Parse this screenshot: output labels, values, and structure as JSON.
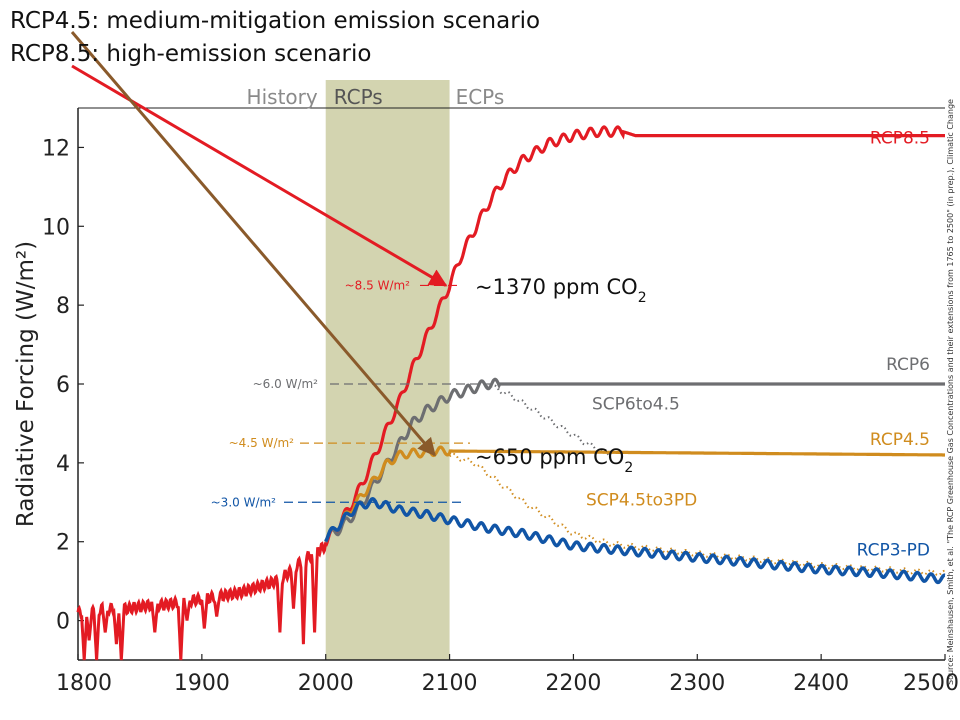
{
  "titles": {
    "line1": "RCP4.5: medium-mitigation emission scenario",
    "line2": "RCP8.5: high-emission scenario"
  },
  "chart_data": {
    "type": "line",
    "ylabel": "Radiative Forcing (W/m²)",
    "xlim": [
      1800,
      2500
    ],
    "ylim": [
      -1,
      13
    ],
    "x_ticks": [
      1800,
      1900,
      2000,
      2100,
      2200,
      2300,
      2400,
      2500
    ],
    "y_ticks": [
      0,
      2,
      4,
      6,
      8,
      10,
      12
    ],
    "periods": [
      {
        "name": "History",
        "start": 1800,
        "end": 2000
      },
      {
        "name": "RCPs",
        "start": 2000,
        "end": 2100
      },
      {
        "name": "ECPs",
        "start": 2100,
        "end": 2500
      }
    ],
    "history": {
      "x": [
        1800,
        1810,
        1820,
        1830,
        1840,
        1850,
        1860,
        1870,
        1880,
        1890,
        1900,
        1910,
        1920,
        1930,
        1940,
        1950,
        1960,
        1970,
        1980,
        1990,
        2000
      ],
      "y": [
        0.2,
        0.2,
        0.3,
        0.3,
        0.3,
        0.35,
        0.4,
        0.4,
        0.45,
        0.5,
        0.55,
        0.6,
        0.65,
        0.7,
        0.8,
        0.9,
        1.0,
        1.2,
        1.5,
        1.7,
        1.9
      ],
      "dips": [
        {
          "x": 1805,
          "y": -1.0
        },
        {
          "x": 1809,
          "y": -0.5
        },
        {
          "x": 1815,
          "y": -1.0
        },
        {
          "x": 1822,
          "y": -0.3
        },
        {
          "x": 1831,
          "y": -0.6
        },
        {
          "x": 1835,
          "y": -1.0
        },
        {
          "x": 1862,
          "y": -0.3
        },
        {
          "x": 1883,
          "y": -1.0
        },
        {
          "x": 1888,
          "y": 0.0
        },
        {
          "x": 1902,
          "y": -0.2
        },
        {
          "x": 1912,
          "y": 0.1
        },
        {
          "x": 1963,
          "y": -0.3
        },
        {
          "x": 1974,
          "y": 0.3
        },
        {
          "x": 1982,
          "y": -0.6
        },
        {
          "x": 1991,
          "y": -0.3
        }
      ]
    },
    "series": [
      {
        "name": "RCP8.5",
        "color": "#e31b23",
        "x": [
          2000,
          2010,
          2020,
          2030,
          2040,
          2050,
          2060,
          2070,
          2080,
          2090,
          2100,
          2110,
          2120,
          2130,
          2140,
          2150,
          2160,
          2170,
          2180,
          2190,
          2200,
          2210,
          2220,
          2230,
          2240,
          2250,
          2500
        ],
        "y": [
          2.0,
          2.4,
          2.9,
          3.5,
          4.2,
          4.9,
          5.6,
          6.4,
          7.1,
          7.8,
          8.5,
          9.3,
          9.9,
          10.5,
          11.0,
          11.4,
          11.7,
          11.9,
          12.1,
          12.2,
          12.3,
          12.35,
          12.4,
          12.4,
          12.4,
          12.3,
          12.3
        ]
      },
      {
        "name": "RCP6",
        "color": "#6d6e71",
        "x": [
          2000,
          2010,
          2020,
          2030,
          2040,
          2050,
          2060,
          2070,
          2080,
          2090,
          2100,
          2110,
          2120,
          2130,
          2140,
          2150,
          2500
        ],
        "y": [
          2.1,
          2.3,
          2.6,
          3.0,
          3.5,
          4.0,
          4.5,
          5.0,
          5.3,
          5.5,
          5.7,
          5.8,
          5.9,
          6.0,
          6.0,
          6.0,
          6.0
        ]
      },
      {
        "name": "SCP6to4.5",
        "color": "#6d6e71",
        "style": "dotted",
        "x": [
          2130,
          2150,
          2170,
          2190,
          2210,
          2230
        ],
        "y": [
          6.0,
          5.7,
          5.3,
          4.9,
          4.5,
          4.2
        ]
      },
      {
        "name": "RCP4.5",
        "color": "#d08c1e",
        "x": [
          2000,
          2010,
          2020,
          2030,
          2040,
          2050,
          2060,
          2070,
          2080,
          2090,
          2100,
          2500
        ],
        "y": [
          2.1,
          2.4,
          2.8,
          3.2,
          3.6,
          4.0,
          4.2,
          4.25,
          4.25,
          4.3,
          4.3,
          4.2
        ]
      },
      {
        "name": "SCP4.5to3PD",
        "color": "#d08c1e",
        "style": "dotted",
        "x": [
          2100,
          2120,
          2140,
          2160,
          2180,
          2200,
          2230,
          2270,
          2300,
          2350,
          2400,
          2450,
          2500
        ],
        "y": [
          4.2,
          4.0,
          3.5,
          3.0,
          2.6,
          2.2,
          1.95,
          1.8,
          1.7,
          1.55,
          1.4,
          1.3,
          1.2
        ]
      },
      {
        "name": "RCP3-PD",
        "color": "#1155a6",
        "x": [
          2000,
          2010,
          2020,
          2030,
          2040,
          2060,
          2080,
          2100,
          2130,
          2160,
          2200,
          2250,
          2300,
          2350,
          2400,
          2450,
          2500
        ],
        "y": [
          2.1,
          2.4,
          2.75,
          2.95,
          3.0,
          2.8,
          2.7,
          2.55,
          2.35,
          2.2,
          1.9,
          1.75,
          1.6,
          1.45,
          1.3,
          1.2,
          1.05
        ]
      }
    ],
    "wm_levels": [
      {
        "label": "~8.5 W/m²",
        "y": 8.5,
        "color": "#e31b23"
      },
      {
        "label": "~6.0 W/m²",
        "y": 6.0,
        "color": "#6d6e71"
      },
      {
        "label": "~4.5 W/m²",
        "y": 4.5,
        "color": "#d08c1e"
      },
      {
        "label": "~3.0 W/m²",
        "y": 3.0,
        "color": "#1155a6"
      }
    ],
    "ppm_labels": [
      {
        "text": "~1370 ppm CO",
        "sub": "2",
        "anchor_x": 2100,
        "anchor_y": 8.4
      },
      {
        "text": "~650 ppm CO",
        "sub": "2",
        "anchor_x": 2100,
        "anchor_y": 4.2
      }
    ],
    "arrows": [
      {
        "color": "#e31b23",
        "from": "line2",
        "to_x": 2097,
        "to_y": 8.5
      },
      {
        "color": "#8a5a2b",
        "from": "line1",
        "to_x": 2088,
        "to_y": 4.2
      }
    ],
    "source": "Source: Meinshausen, Smith, et al. \"The RCP Greenhouse Gas Concentrations and their extensions from 1765 to 2500\" (in prep.), Climatic Change",
    "colors": {
      "band": "#d3d4b0",
      "grid": "#cccccc"
    }
  }
}
